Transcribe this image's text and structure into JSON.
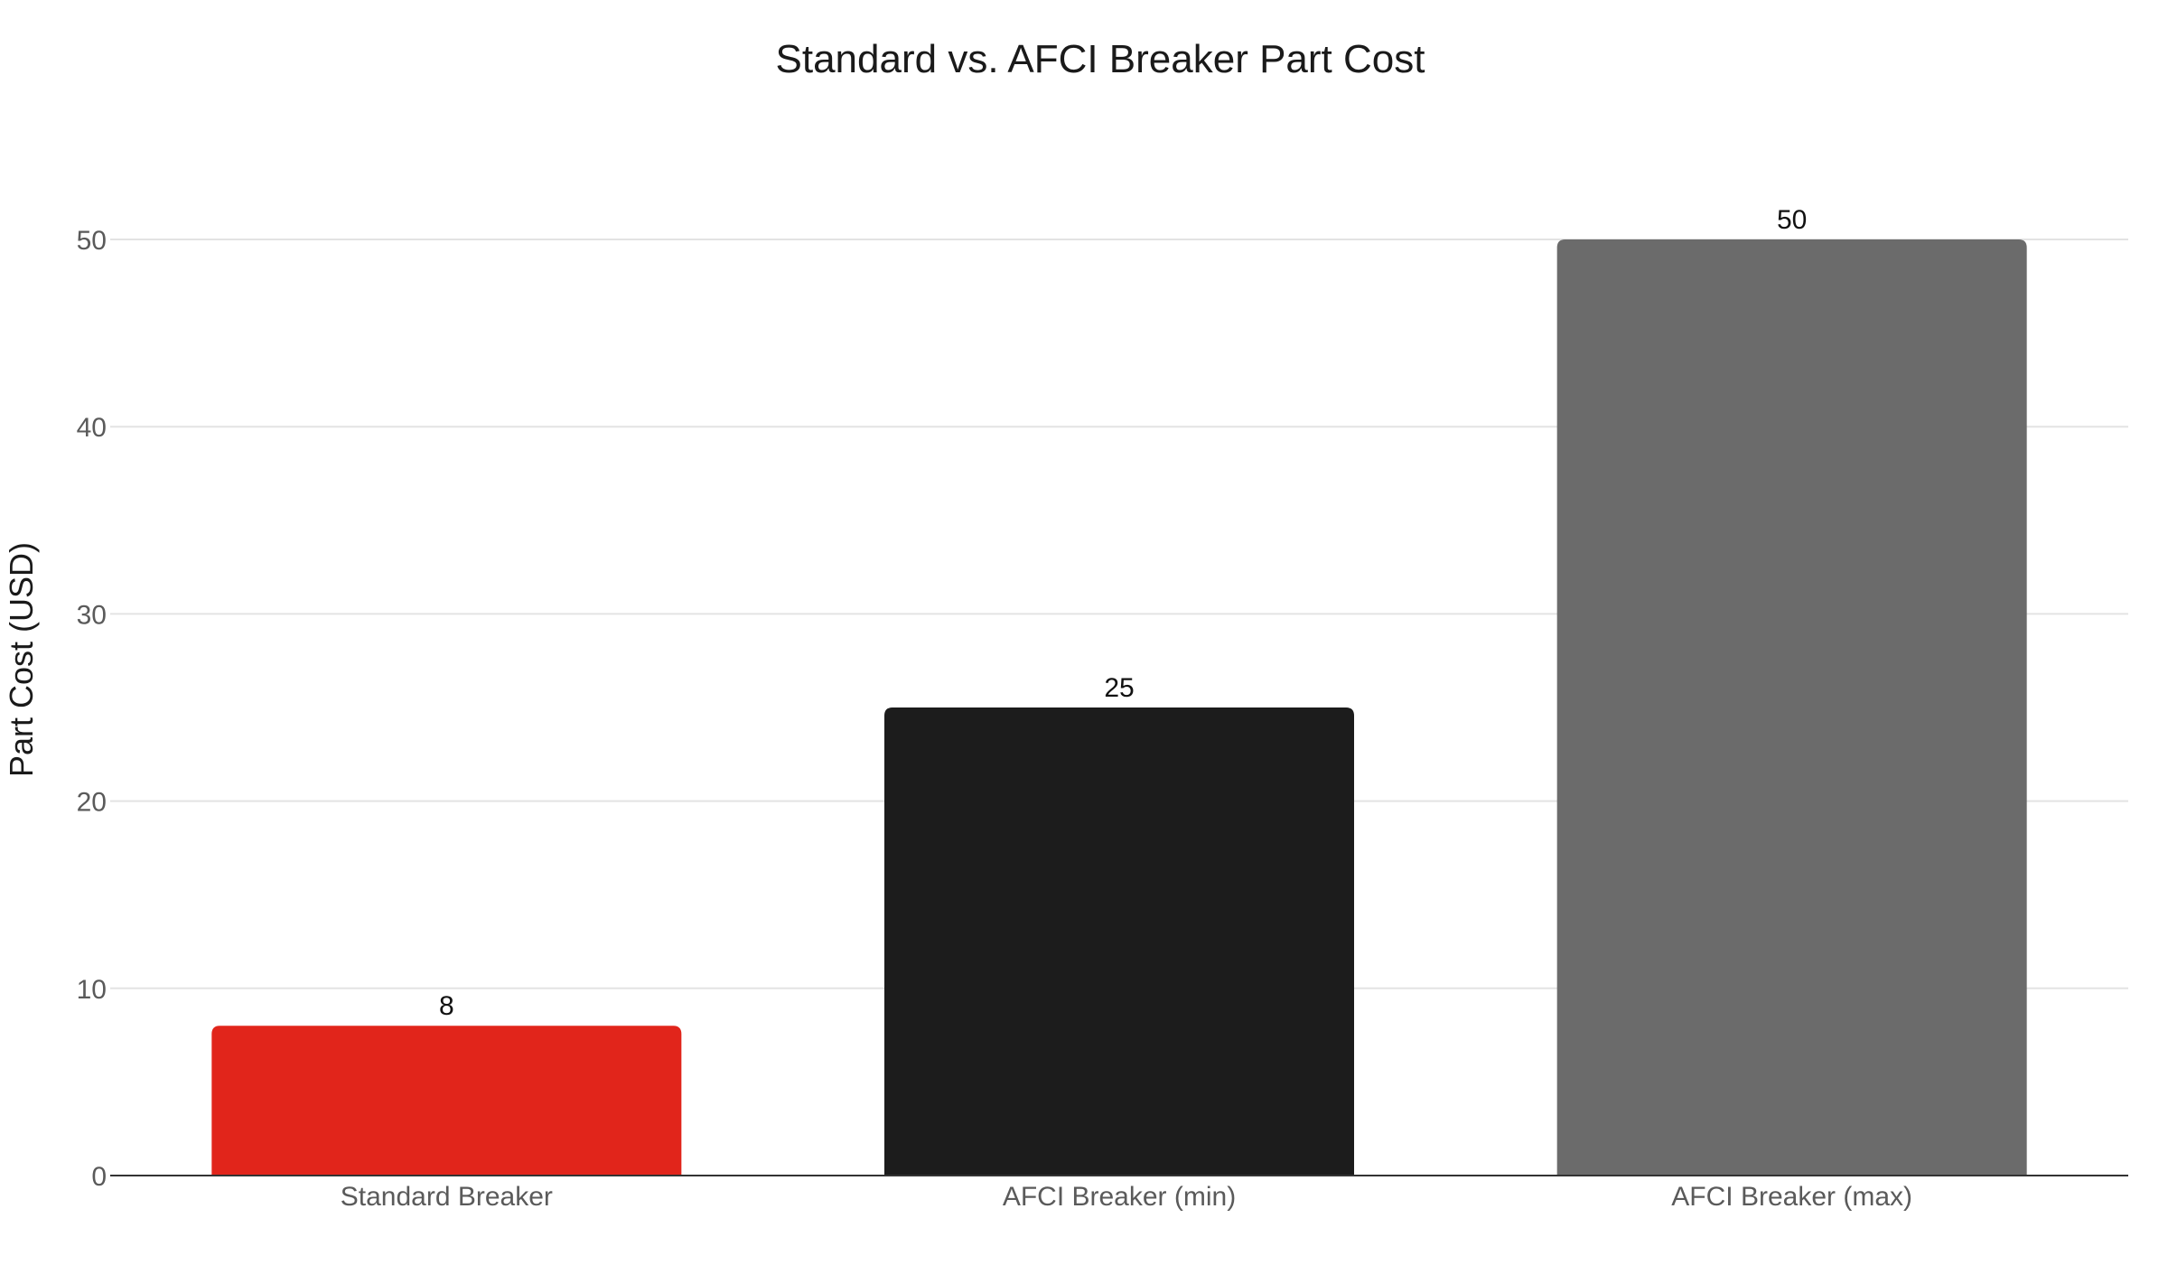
{
  "chart_data": {
    "type": "bar",
    "title": "Standard vs. AFCI Breaker Part Cost",
    "xlabel": "",
    "ylabel": "Part Cost (USD)",
    "categories": [
      "Standard Breaker",
      "AFCI Breaker (min)",
      "AFCI Breaker (max)"
    ],
    "values": [
      8,
      25,
      50
    ],
    "data_labels": [
      "8",
      "25",
      "50"
    ],
    "bar_colors": [
      "#e1251b",
      "#1c1c1c",
      "#6b6b6b"
    ],
    "ylim": [
      0,
      50
    ],
    "yticks": [
      0,
      10,
      20,
      30,
      40,
      50
    ],
    "ytick_labels": [
      "0",
      "10",
      "20",
      "30",
      "40",
      "50"
    ],
    "grid": true,
    "legend": "none"
  }
}
